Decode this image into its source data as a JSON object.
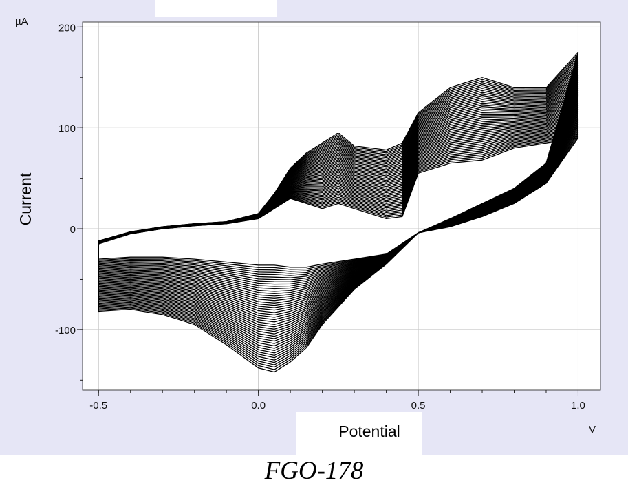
{
  "caption": "FGO-178",
  "chart_data": {
    "type": "line",
    "title": "",
    "xlabel": "Potential",
    "ylabel": "Current",
    "x_unit": "V",
    "y_unit": "µA",
    "xlim": [
      -0.55,
      1.07
    ],
    "ylim": [
      -160,
      205
    ],
    "x_ticks": [
      -0.5,
      0.0,
      0.5,
      1.0
    ],
    "x_tick_labels": [
      "-0.5",
      "0.0",
      "0.5",
      "1.0"
    ],
    "y_ticks": [
      -100,
      0,
      100,
      200
    ],
    "y_tick_labels": [
      "-100",
      "0",
      "100",
      "200"
    ],
    "grid": true,
    "line_color": "#000000",
    "background_color": "#e6e6f6",
    "description": "Overlaid cyclic voltammograms (many repeated scans); anodic and cathodic currents grow with cycle number",
    "series": [
      {
        "x": [
          -0.5,
          -0.4,
          -0.3,
          -0.2,
          -0.1,
          0.0,
          0.05,
          0.1,
          0.15,
          0.2,
          0.25,
          0.3,
          0.4,
          0.45,
          0.5,
          0.6,
          0.7,
          0.8,
          0.9,
          1.0,
          0.9,
          0.8,
          0.7,
          0.6,
          0.5,
          0.4,
          0.3,
          0.2,
          0.15,
          0.1,
          0.05,
          0.0,
          -0.1,
          -0.2,
          -0.3,
          -0.4,
          -0.5,
          -0.5
        ],
        "y": [
          -12,
          -3,
          2,
          5,
          7,
          15,
          35,
          60,
          75,
          85,
          95,
          82,
          78,
          85,
          115,
          140,
          150,
          140,
          140,
          175,
          65,
          40,
          25,
          10,
          -4,
          -35,
          -60,
          -95,
          -118,
          -132,
          -142,
          -138,
          -115,
          -95,
          -85,
          -80,
          -82,
          -12
        ]
      },
      {
        "x": [
          -0.5,
          -0.4,
          -0.3,
          -0.2,
          -0.1,
          0.0,
          0.05,
          0.1,
          0.15,
          0.2,
          0.25,
          0.3,
          0.4,
          0.45,
          0.5,
          0.6,
          0.7,
          0.8,
          0.9,
          1.0,
          0.9,
          0.8,
          0.7,
          0.6,
          0.5,
          0.4,
          0.3,
          0.2,
          0.15,
          0.1,
          0.05,
          0.0,
          -0.1,
          -0.2,
          -0.3,
          -0.4,
          -0.5,
          -0.5
        ],
        "y": [
          -15,
          -5,
          0,
          3,
          5,
          10,
          20,
          30,
          25,
          20,
          25,
          20,
          10,
          12,
          55,
          65,
          68,
          80,
          85,
          90,
          45,
          25,
          12,
          2,
          -4,
          -25,
          -30,
          -35,
          -38,
          -38,
          -36,
          -36,
          -33,
          -30,
          -28,
          -28,
          -30,
          -15
        ]
      }
    ]
  }
}
